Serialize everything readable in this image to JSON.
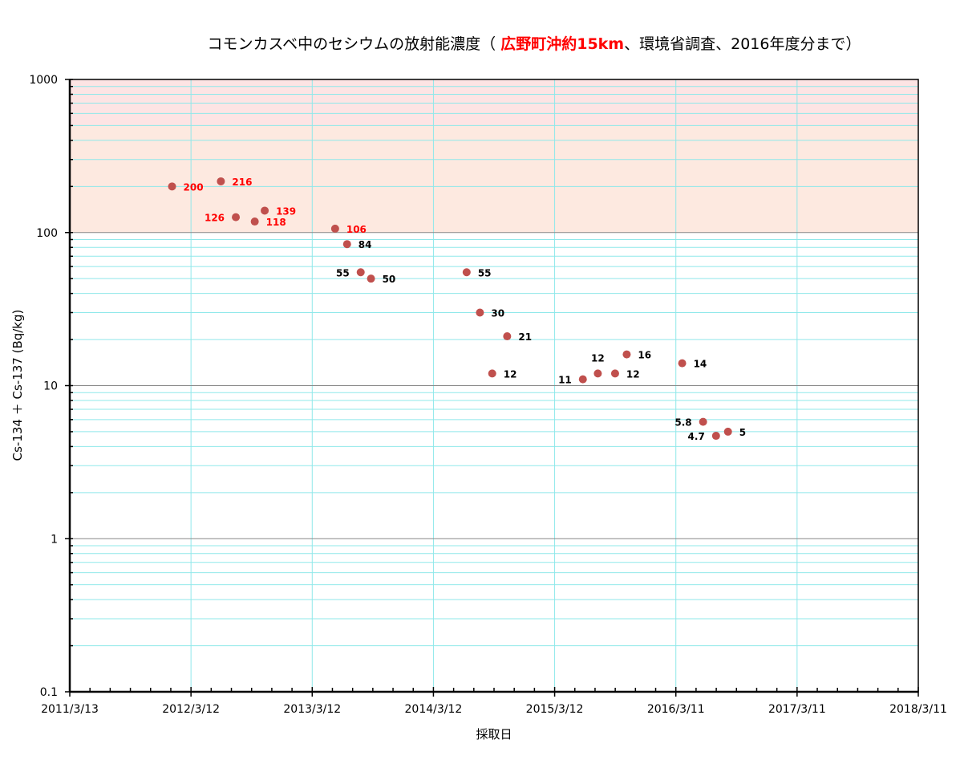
{
  "chart_data": {
    "type": "scatter",
    "title": {
      "prefix": "コモンカスベ中のセシウムの放射能濃度（ ",
      "highlight": "広野町沖約15km",
      "suffix": "、環境省調査、2016年度分まで）",
      "highlight_color": "#ff0000"
    },
    "xlabel": "採取日",
    "ylabel": "Cs-134 ＋ Cs-137 (Bq/kg)",
    "y_scale": "log",
    "ylim": [
      0.1,
      1000
    ],
    "y_ticks": [
      "0.1",
      "1",
      "10",
      "100",
      "1000"
    ],
    "xlim": [
      "2011-03-13",
      "2018-03-11"
    ],
    "x_ticks": [
      "2011/3/13",
      "2012/3/12",
      "2013/3/12",
      "2014/3/12",
      "2015/3/12",
      "2016/3/11",
      "2017/3/11",
      "2018/3/11"
    ],
    "bands": [
      {
        "from": 100,
        "to": 500,
        "color": "#fde9e0"
      },
      {
        "from": 500,
        "to": 1000,
        "color": "#fde4e4"
      }
    ],
    "grid": true,
    "legend": "none",
    "marker_color": "#c0504d",
    "points": [
      {
        "x": "2012-01-15",
        "y": 200,
        "label": "200",
        "label_color": "#ff0000"
      },
      {
        "x": "2012-06-10",
        "y": 216,
        "label": "216",
        "label_color": "#ff0000"
      },
      {
        "x": "2012-07-25",
        "y": 126,
        "label": "126",
        "label_color": "#ff0000"
      },
      {
        "x": "2012-09-20",
        "y": 118,
        "label": "118",
        "label_color": "#ff0000"
      },
      {
        "x": "2012-10-20",
        "y": 139,
        "label": "139",
        "label_color": "#ff0000"
      },
      {
        "x": "2013-05-20",
        "y": 106,
        "label": "106",
        "label_color": "#ff0000"
      },
      {
        "x": "2013-06-25",
        "y": 84,
        "label": "84",
        "label_color": "#000000"
      },
      {
        "x": "2013-08-05",
        "y": 55,
        "label": "55",
        "label_color": "#000000"
      },
      {
        "x": "2013-09-05",
        "y": 50,
        "label": "50",
        "label_color": "#000000"
      },
      {
        "x": "2014-06-20",
        "y": 55,
        "label": "55",
        "label_color": "#000000"
      },
      {
        "x": "2014-07-30",
        "y": 30,
        "label": "30",
        "label_color": "#000000"
      },
      {
        "x": "2014-09-05",
        "y": 12,
        "label": "12",
        "label_color": "#000000"
      },
      {
        "x": "2014-10-20",
        "y": 21,
        "label": "21",
        "label_color": "#000000"
      },
      {
        "x": "2015-06-05",
        "y": 11,
        "label": "11",
        "label_color": "#000000"
      },
      {
        "x": "2015-07-20",
        "y": 12,
        "label": "12",
        "label_color": "#000000"
      },
      {
        "x": "2015-09-10",
        "y": 12,
        "label": "12",
        "label_color": "#000000"
      },
      {
        "x": "2015-10-15",
        "y": 16,
        "label": "16",
        "label_color": "#000000"
      },
      {
        "x": "2016-03-30",
        "y": 14,
        "label": "14",
        "label_color": "#000000"
      },
      {
        "x": "2016-06-01",
        "y": 5.8,
        "label": "5.8",
        "label_color": "#000000"
      },
      {
        "x": "2016-07-10",
        "y": 4.7,
        "label": "4.7",
        "label_color": "#000000"
      },
      {
        "x": "2016-08-15",
        "y": 5,
        "label": "5",
        "label_color": "#000000"
      }
    ]
  }
}
